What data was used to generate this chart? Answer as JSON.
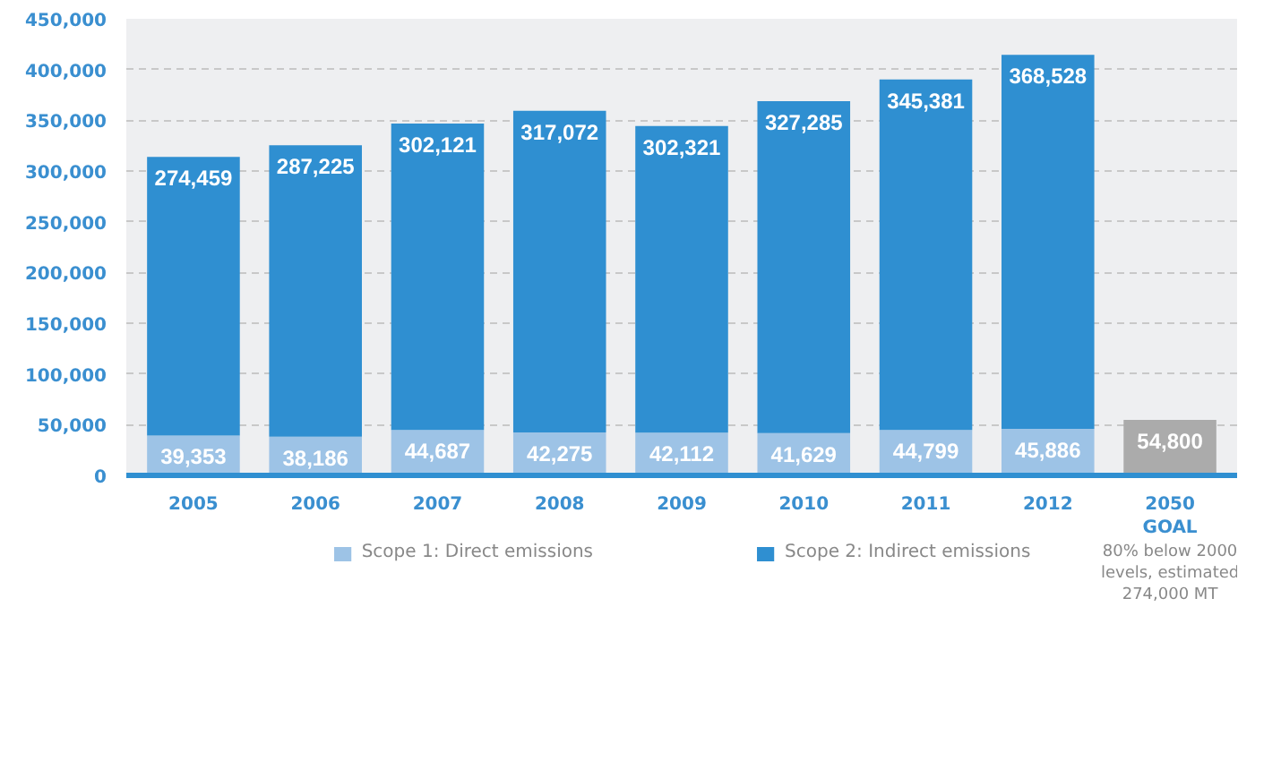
{
  "chart_data": {
    "type": "bar",
    "stacked": true,
    "categories": [
      "2005",
      "2006",
      "2007",
      "2008",
      "2009",
      "2010",
      "2011",
      "2012",
      "2050 GOAL"
    ],
    "series": [
      {
        "name": "Scope 1: Direct emissions",
        "color": "#9dc3e6",
        "values": [
          39353,
          38186,
          44687,
          42275,
          42112,
          41629,
          44799,
          45886,
          null
        ],
        "value_labels": [
          "39,353",
          "38,186",
          "44,687",
          "42,275",
          "42,112",
          "41,629",
          "44,799",
          "45,886",
          null
        ]
      },
      {
        "name": "Scope 2: Indirect emissions",
        "color": "#2f8fd1",
        "values": [
          274459,
          287225,
          302121,
          317072,
          302321,
          327285,
          345381,
          368528,
          null
        ],
        "value_labels": [
          "274,459",
          "287,225",
          "302,121",
          "317,072",
          "302,321",
          "327,285",
          "345,381",
          "368,528",
          null
        ]
      },
      {
        "color": "#ababab",
        "values": [
          null,
          null,
          null,
          null,
          null,
          null,
          null,
          null,
          54800
        ],
        "value_labels": [
          null,
          null,
          null,
          null,
          null,
          null,
          null,
          null,
          "54,800"
        ]
      }
    ],
    "ylim": [
      0,
      450000
    ],
    "yticks": [
      0,
      {
        "value": 50000,
        "label": "50,000"
      },
      {
        "value": 100000,
        "label": "100,000"
      },
      {
        "value": 150000,
        "label": "150,000"
      },
      {
        "value": 200000,
        "label": "200,000"
      },
      {
        "value": 250000,
        "label": "250,000"
      },
      {
        "value": 300000,
        "label": "300,000"
      },
      {
        "value": 350000,
        "label": "350,000"
      },
      {
        "value": 400000,
        "label": "400,000"
      },
      {
        "value": 450000,
        "label": "450,000"
      }
    ],
    "grid": "y",
    "legend": "bottom",
    "annotations": [
      "80% below 2000 levels, estimated 274,000 MT"
    ]
  }
}
